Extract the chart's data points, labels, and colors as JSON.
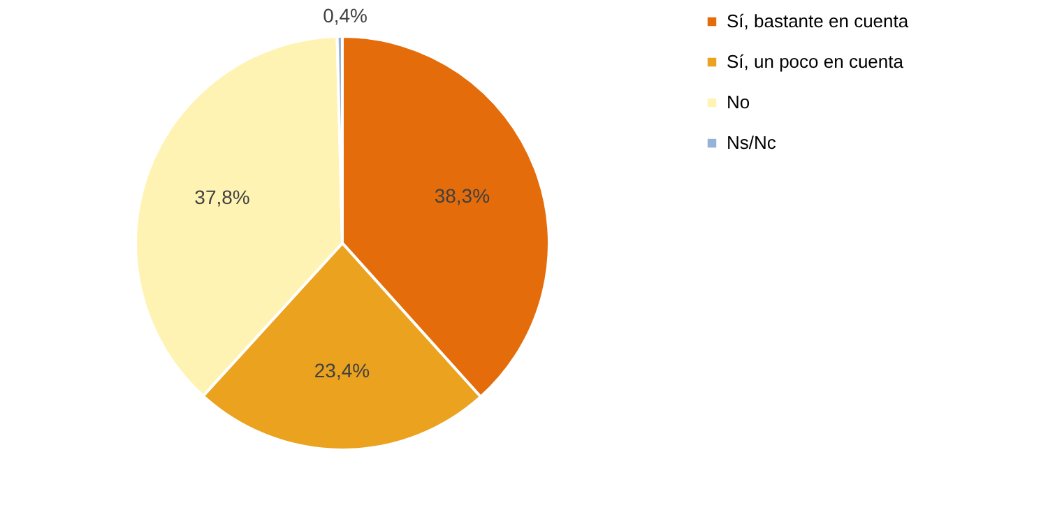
{
  "chart_data": {
    "type": "pie",
    "categories": [
      "Sí, bastante en cuenta",
      "Sí, un poco en cuenta",
      "No",
      "Ns/Nc"
    ],
    "values": [
      38.3,
      23.4,
      37.8,
      0.4
    ],
    "colors": [
      "#e46c0a",
      "#eba21e",
      "#fff3b4",
      "#95b3d7"
    ],
    "value_labels": [
      "38,3%",
      "23,4%",
      "37,8%",
      "0,4%"
    ],
    "legend": "right"
  }
}
